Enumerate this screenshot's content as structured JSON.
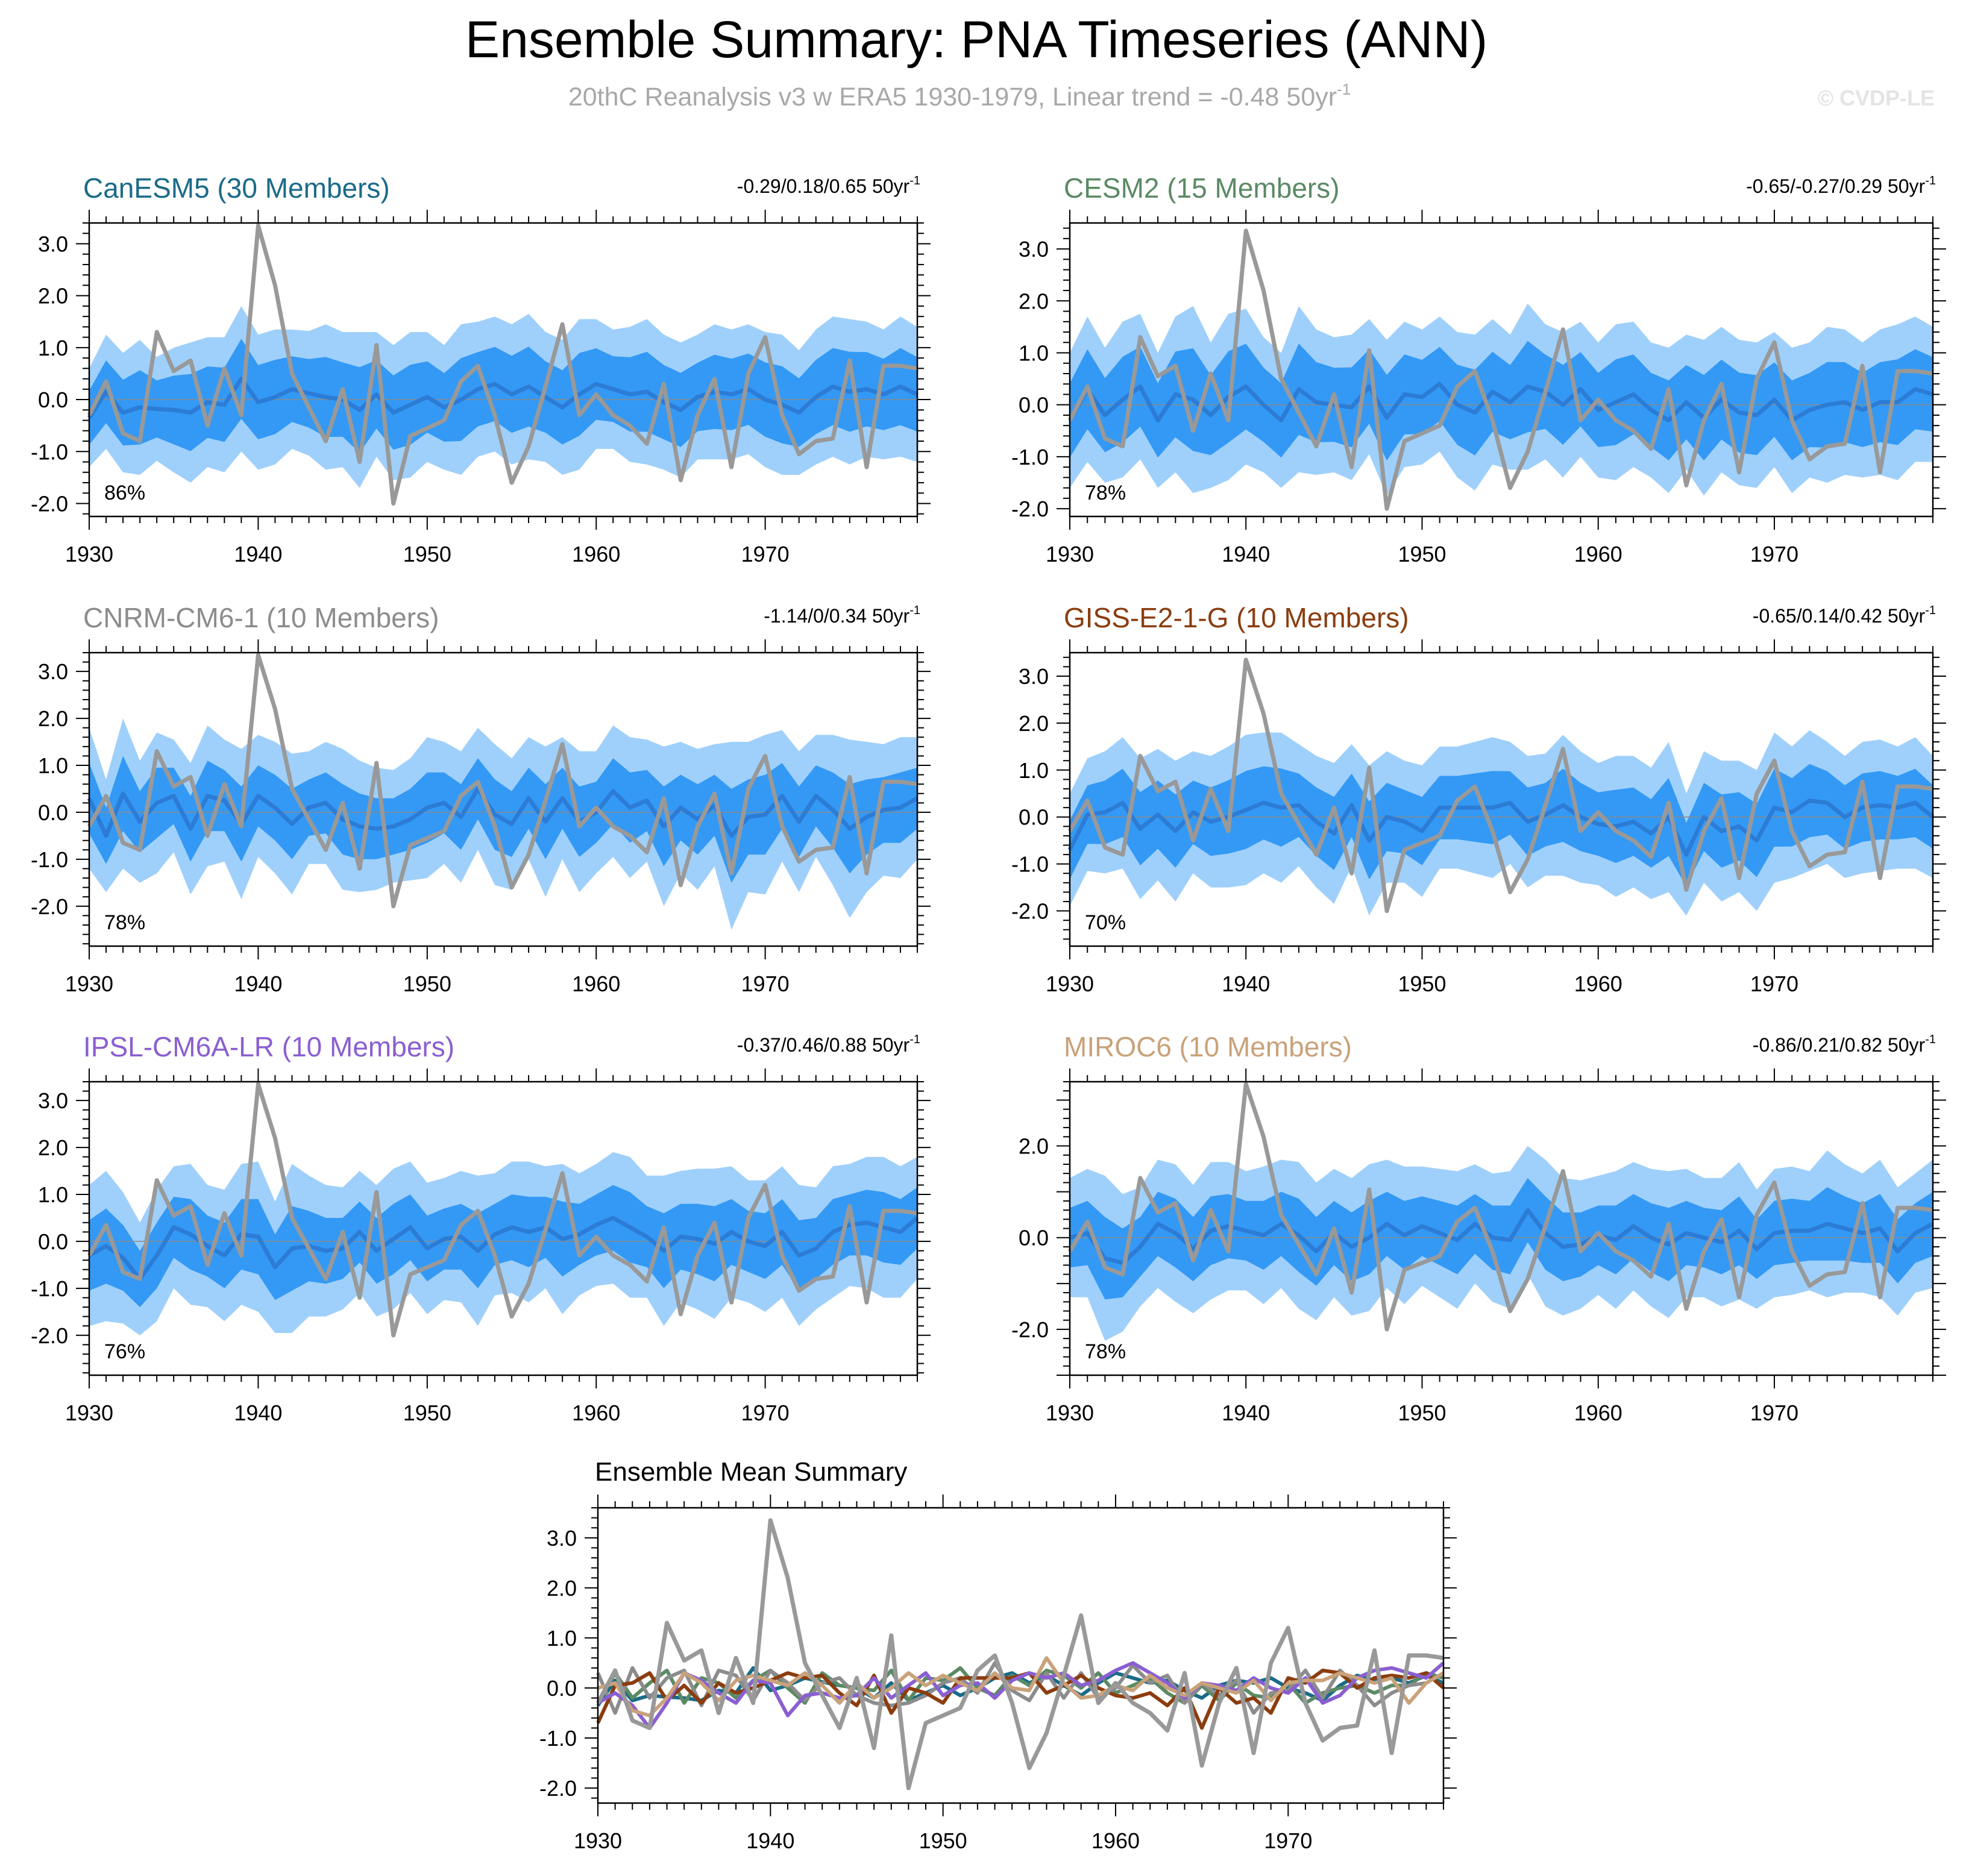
{
  "figure": {
    "title": "Ensemble Summary: PNA Timeseries (ANN)",
    "subtitle": "20thC Reanalysis v3 w ERA5 1930-1979, Linear trend = -0.48 50yr",
    "subtitle_exponent": "-1",
    "watermark": "© CVDP-LE"
  },
  "colors": {
    "outer_band": "#9fd0fb",
    "inner_band": "#3399f5",
    "ensemble_mean": "#2c7cd6",
    "observations": "#999999",
    "CanESM5": "#1a6b87",
    "CESM2": "#5b8a64",
    "CNRM-CM6-1": "#8c8c8c",
    "GISS-E2-1-G": "#8b3d0f",
    "IPSL-CM6A-LR": "#8a5fd1",
    "MIROC6": "#c9a27a"
  },
  "chart_data": [
    {
      "type": "line",
      "panel": "CanESM5",
      "title": "CanESM5 (30 Members)",
      "title_color": "#1a6b87",
      "trend": "-0.29/0.18/0.65 50yr",
      "trend_exponent": "-1",
      "percent": "86%",
      "xlim": [
        1930,
        1979
      ],
      "ylim": [
        -2.25,
        3.4
      ],
      "x_ticks": [
        1930,
        1940,
        1950,
        1960,
        1970
      ],
      "y_ticks": [
        3.0,
        2.0,
        1.0,
        0.0,
        -1.0,
        -2.0
      ],
      "y_tick_labels": [
        "3.0",
        "2.0",
        "1.0",
        "0.0",
        "-1.0",
        "-2.0"
      ],
      "series": [
        {
          "name": "ensemble_mean",
          "values": [
            -0.35,
            0.15,
            -0.25,
            -0.15,
            -0.18,
            -0.2,
            -0.25,
            -0.05,
            -0.1,
            0.4,
            -0.05,
            0.05,
            0.2,
            0.12,
            0.05,
            0.0,
            -0.2,
            0.1,
            -0.25,
            -0.1,
            0.05,
            -0.15,
            0.0,
            0.2,
            0.3,
            0.1,
            0.25,
            0.05,
            -0.15,
            0.1,
            0.3,
            0.2,
            0.1,
            0.15,
            -0.05,
            -0.2,
            0.05,
            0.15,
            0.1,
            0.2,
            0.0,
            -0.1,
            -0.25,
            0.05,
            0.25,
            0.15,
            0.2,
            0.1,
            0.25,
            0.1
          ]
        }
      ]
    },
    {
      "type": "line",
      "panel": "CESM2",
      "title": "CESM2 (15 Members)",
      "title_color": "#5b8a64",
      "trend": "-0.65/-0.27/0.29 50yr",
      "trend_exponent": "-1",
      "percent": "78%",
      "xlim": [
        1930,
        1979
      ],
      "ylim": [
        -2.15,
        3.5
      ],
      "x_ticks": [
        1930,
        1940,
        1950,
        1960,
        1970
      ],
      "y_ticks": [
        3.0,
        2.0,
        1.0,
        0.0,
        -1.0,
        -2.0
      ],
      "y_tick_labels": [
        "3.0",
        "2.0",
        "1.0",
        "0.0",
        "-1.0",
        "-2.0"
      ],
      "series": [
        {
          "name": "ensemble_mean",
          "values": [
            -0.3,
            0.3,
            -0.2,
            0.1,
            0.35,
            -0.3,
            0.2,
            0.1,
            -0.2,
            0.15,
            0.35,
            0.0,
            -0.3,
            0.3,
            0.05,
            0.0,
            -0.05,
            0.35,
            -0.25,
            0.2,
            0.15,
            0.4,
            0.0,
            -0.15,
            0.25,
            0.05,
            0.35,
            0.25,
            0.0,
            0.3,
            -0.1,
            0.05,
            0.2,
            -0.1,
            -0.3,
            0.05,
            -0.25,
            0.1,
            -0.15,
            -0.2,
            0.1,
            -0.3,
            -0.1,
            0.0,
            0.05,
            -0.1,
            0.05,
            0.05,
            0.3,
            0.2
          ]
        }
      ]
    },
    {
      "type": "line",
      "panel": "CNRM-CM6-1",
      "title": "CNRM-CM6-1 (10 Members)",
      "title_color": "#8c8c8c",
      "trend": "-1.14/0/0.34 50yr",
      "trend_exponent": "-1",
      "percent": "78%",
      "xlim": [
        1930,
        1979
      ],
      "ylim": [
        -2.85,
        3.4
      ],
      "x_ticks": [
        1930,
        1940,
        1950,
        1960,
        1970
      ],
      "y_ticks": [
        3.0,
        2.0,
        1.0,
        0.0,
        -1.0,
        -2.0
      ],
      "y_tick_labels": [
        "3.0",
        "2.0",
        "1.0",
        "0.0",
        "-1.0",
        "-2.0"
      ],
      "series": [
        {
          "name": "ensemble_mean",
          "values": [
            0.3,
            -0.5,
            0.4,
            -0.2,
            0.2,
            0.35,
            -0.35,
            0.35,
            0.25,
            -0.25,
            0.35,
            0.1,
            -0.25,
            0.1,
            0.2,
            -0.15,
            -0.3,
            -0.35,
            -0.3,
            -0.15,
            0.1,
            0.2,
            -0.1,
            0.5,
            -0.05,
            -0.25,
            0.3,
            -0.2,
            0.3,
            -0.2,
            0.0,
            0.45,
            0.1,
            0.25,
            -0.3,
            0.1,
            -0.15,
            0.15,
            -0.5,
            -0.1,
            -0.05,
            0.35,
            -0.2,
            0.35,
            0.05,
            -0.35,
            -0.1,
            0.05,
            0.1,
            0.3
          ]
        }
      ]
    },
    {
      "type": "line",
      "panel": "GISS-E2-1-G",
      "title": "GISS-E2-1-G (10 Members)",
      "title_color": "#8b3d0f",
      "trend": "-0.65/0.14/0.42 50yr",
      "trend_exponent": "-1",
      "percent": "70%",
      "xlim": [
        1930,
        1979
      ],
      "ylim": [
        -2.75,
        3.5
      ],
      "x_ticks": [
        1930,
        1940,
        1950,
        1960,
        1970
      ],
      "y_ticks": [
        3.0,
        2.0,
        1.0,
        0.0,
        -1.0,
        -2.0
      ],
      "y_tick_labels": [
        "3.0",
        "2.0",
        "1.0",
        "0.0",
        "-1.0",
        "-2.0"
      ],
      "series": [
        {
          "name": "ensemble_mean",
          "values": [
            -0.7,
            0.05,
            0.1,
            0.3,
            -0.25,
            0.05,
            -0.3,
            0.1,
            -0.1,
            0.0,
            0.15,
            0.3,
            0.2,
            0.25,
            -0.1,
            -0.35,
            0.25,
            -0.5,
            0.0,
            -0.1,
            -0.3,
            0.2,
            0.2,
            0.2,
            0.2,
            0.3,
            -0.1,
            0.05,
            0.25,
            0.0,
            -0.15,
            -0.2,
            -0.1,
            -0.35,
            0.0,
            -0.8,
            0.0,
            -0.3,
            -0.2,
            -0.5,
            0.2,
            0.1,
            0.35,
            0.3,
            0.0,
            0.2,
            0.25,
            0.2,
            0.3,
            0.0
          ]
        }
      ]
    },
    {
      "type": "line",
      "panel": "IPSL-CM6A-LR",
      "title": "IPSL-CM6A-LR (10 Members)",
      "title_color": "#8a5fd1",
      "trend": "-0.37/0.46/0.88 50yr",
      "trend_exponent": "-1",
      "percent": "76%",
      "xlim": [
        1930,
        1979
      ],
      "ylim": [
        -2.85,
        3.4
      ],
      "x_ticks": [
        1930,
        1940,
        1950,
        1960,
        1970
      ],
      "y_ticks": [
        3.0,
        2.0,
        1.0,
        0.0,
        -1.0,
        -2.0
      ],
      "y_tick_labels": [
        "3.0",
        "2.0",
        "1.0",
        "0.0",
        "-1.0",
        "-2.0"
      ],
      "series": [
        {
          "name": "ensemble_mean",
          "values": [
            -0.3,
            -0.1,
            -0.35,
            -0.8,
            -0.3,
            0.3,
            0.15,
            -0.1,
            -0.3,
            0.15,
            0.1,
            -0.55,
            -0.15,
            -0.1,
            -0.2,
            -0.15,
            0.2,
            -0.2,
            0.05,
            0.3,
            -0.15,
            0.05,
            0.1,
            -0.2,
            0.15,
            0.3,
            0.2,
            0.3,
            0.05,
            0.15,
            0.35,
            0.5,
            0.3,
            0.1,
            -0.2,
            0.1,
            0.05,
            -0.05,
            0.2,
            0.0,
            -0.1,
            0.2,
            -0.3,
            -0.15,
            0.2,
            0.35,
            0.4,
            0.3,
            0.2,
            0.5
          ]
        }
      ]
    },
    {
      "type": "line",
      "panel": "MIROC6",
      "title": "MIROC6 (10 Members)",
      "title_color": "#c9a27a",
      "trend": "-0.86/0.21/0.82 50yr",
      "trend_exponent": "-1",
      "percent": "78%",
      "xlim": [
        1930,
        1979
      ],
      "ylim": [
        -3.0,
        3.4
      ],
      "x_ticks": [
        1930,
        1940,
        1950,
        1960,
        1970
      ],
      "y_ticks": [
        2.0,
        0.0,
        -2.0
      ],
      "y_tick_labels": [
        "2.0",
        "0.0",
        "-2.0"
      ],
      "series": [
        {
          "name": "ensemble_mean",
          "values": [
            0.0,
            0.1,
            -0.45,
            -0.55,
            -0.2,
            0.3,
            0.1,
            -0.25,
            0.15,
            0.25,
            0.15,
            0.05,
            0.3,
            0.05,
            -0.3,
            0.1,
            -0.2,
            0.0,
            0.3,
            0.05,
            0.25,
            0.1,
            -0.05,
            0.3,
            0.0,
            -0.05,
            0.6,
            0.1,
            -0.2,
            -0.15,
            0.05,
            -0.05,
            0.25,
            0.0,
            -0.15,
            0.1,
            0.0,
            -0.1,
            0.15,
            -0.25,
            0.1,
            0.15,
            0.15,
            0.3,
            0.2,
            0.1,
            0.2,
            -0.3,
            0.1,
            0.3
          ]
        }
      ]
    },
    {
      "type": "line",
      "panel": "Ensemble Mean Summary",
      "title": "Ensemble Mean Summary",
      "xlim": [
        1930,
        1979
      ],
      "ylim": [
        -2.3,
        3.6
      ],
      "x_ticks": [
        1930,
        1940,
        1950,
        1960,
        1970
      ],
      "y_ticks": [
        3.0,
        2.0,
        1.0,
        0.0,
        -1.0,
        -2.0
      ],
      "y_tick_labels": [
        "3.0",
        "2.0",
        "1.0",
        "0.0",
        "-1.0",
        "-2.0"
      ],
      "series": [
        {
          "name": "CanESM5",
          "values": [
            -0.35,
            0.15,
            -0.25,
            -0.15,
            -0.18,
            -0.2,
            -0.25,
            -0.05,
            -0.1,
            0.4,
            -0.05,
            0.05,
            0.2,
            0.12,
            0.05,
            0.0,
            -0.2,
            0.1,
            -0.25,
            -0.1,
            0.05,
            -0.15,
            0.0,
            0.2,
            0.3,
            0.1,
            0.25,
            0.05,
            -0.15,
            0.1,
            0.3,
            0.2,
            0.1,
            0.15,
            -0.05,
            -0.2,
            0.05,
            0.15,
            0.1,
            0.2,
            0.0,
            -0.1,
            -0.25,
            0.05,
            0.25,
            0.15,
            0.2,
            0.1,
            0.25,
            0.1
          ]
        },
        {
          "name": "CESM2",
          "values": [
            -0.3,
            0.3,
            -0.2,
            0.1,
            0.35,
            -0.3,
            0.2,
            0.1,
            -0.2,
            0.15,
            0.35,
            0.0,
            -0.3,
            0.3,
            0.05,
            0.0,
            -0.05,
            0.35,
            -0.25,
            0.2,
            0.15,
            0.4,
            0.0,
            -0.15,
            0.25,
            0.05,
            0.35,
            0.25,
            0.0,
            0.3,
            -0.1,
            0.05,
            0.2,
            -0.1,
            -0.3,
            0.05,
            -0.25,
            0.1,
            -0.15,
            -0.2,
            0.1,
            -0.3,
            -0.1,
            0.0,
            0.05,
            -0.1,
            0.05,
            0.05,
            0.3,
            0.2
          ]
        },
        {
          "name": "CNRM-CM6-1",
          "values": [
            0.3,
            -0.5,
            0.4,
            -0.2,
            0.2,
            0.35,
            -0.35,
            0.35,
            0.25,
            -0.25,
            0.35,
            0.1,
            -0.25,
            0.1,
            0.2,
            -0.15,
            -0.3,
            -0.35,
            -0.3,
            -0.15,
            0.1,
            0.2,
            -0.1,
            0.5,
            -0.05,
            -0.25,
            0.3,
            -0.2,
            0.3,
            -0.2,
            0.0,
            0.45,
            0.1,
            0.25,
            -0.3,
            0.1,
            -0.15,
            0.15,
            -0.5,
            -0.1,
            -0.05,
            0.35,
            -0.2,
            0.35,
            0.05,
            -0.35,
            -0.1,
            0.05,
            0.1,
            0.3
          ]
        },
        {
          "name": "GISS-E2-1-G",
          "values": [
            -0.7,
            0.05,
            0.1,
            0.3,
            -0.25,
            0.05,
            -0.3,
            0.1,
            -0.1,
            0.0,
            0.15,
            0.3,
            0.2,
            0.25,
            -0.1,
            -0.35,
            0.25,
            -0.5,
            0.0,
            -0.1,
            -0.3,
            0.2,
            0.2,
            0.2,
            0.2,
            0.3,
            -0.1,
            0.05,
            0.25,
            0.0,
            -0.15,
            -0.2,
            -0.1,
            -0.35,
            0.0,
            -0.8,
            0.0,
            -0.3,
            -0.2,
            -0.5,
            0.2,
            0.1,
            0.35,
            0.3,
            0.0,
            0.2,
            0.25,
            0.2,
            0.3,
            0.0
          ]
        },
        {
          "name": "IPSL-CM6A-LR",
          "values": [
            -0.3,
            -0.1,
            -0.35,
            -0.8,
            -0.3,
            0.3,
            0.15,
            -0.1,
            -0.3,
            0.15,
            0.1,
            -0.55,
            -0.15,
            -0.1,
            -0.2,
            -0.15,
            0.2,
            -0.2,
            0.05,
            0.3,
            -0.15,
            0.05,
            0.1,
            -0.2,
            0.15,
            0.3,
            0.2,
            0.3,
            0.05,
            0.15,
            0.35,
            0.5,
            0.3,
            0.1,
            -0.2,
            0.1,
            0.05,
            -0.05,
            0.2,
            0.0,
            -0.1,
            0.2,
            -0.3,
            -0.15,
            0.2,
            0.35,
            0.4,
            0.3,
            0.2,
            0.5
          ]
        },
        {
          "name": "MIROC6",
          "values": [
            0.0,
            0.1,
            -0.45,
            -0.55,
            -0.2,
            0.3,
            0.1,
            -0.25,
            0.15,
            0.25,
            0.15,
            0.05,
            0.3,
            0.05,
            -0.3,
            0.1,
            -0.2,
            0.0,
            0.3,
            0.05,
            0.25,
            0.1,
            -0.05,
            0.3,
            0.0,
            -0.05,
            0.6,
            0.1,
            -0.2,
            -0.15,
            0.05,
            -0.05,
            0.25,
            0.0,
            -0.15,
            0.1,
            0.0,
            -0.1,
            0.15,
            -0.25,
            0.1,
            0.15,
            0.15,
            0.3,
            0.2,
            0.1,
            0.2,
            -0.3,
            0.1,
            0.3
          ]
        }
      ]
    }
  ],
  "observations": {
    "name": "20thC Reanalysis v3 w ERA5",
    "years": [
      1930,
      1979
    ],
    "values": [
      -0.3,
      0.35,
      -0.65,
      -0.8,
      1.3,
      0.55,
      0.75,
      -0.5,
      0.6,
      -0.3,
      3.35,
      2.2,
      0.5,
      -0.15,
      -0.8,
      0.2,
      -1.2,
      1.05,
      -2.0,
      -0.7,
      -0.55,
      -0.4,
      0.35,
      0.65,
      -0.3,
      -1.6,
      -0.9,
      0.25,
      1.45,
      -0.3,
      0.1,
      -0.3,
      -0.5,
      -0.85,
      0.3,
      -1.55,
      -0.3,
      0.4,
      -1.3,
      0.5,
      1.2,
      -0.3,
      -1.05,
      -0.8,
      -0.75,
      0.75,
      -1.3,
      0.65,
      0.65,
      0.6
    ]
  }
}
